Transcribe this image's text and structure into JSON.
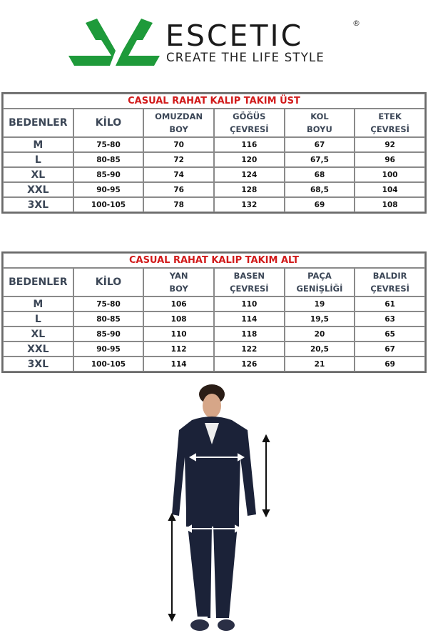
{
  "brand": {
    "name": "ESCETIC",
    "registered": "®",
    "slogan": "CREATE THE LIFE STYLE",
    "colors": {
      "logo_green": "#1e9a3a",
      "text": "#1a1a1a"
    }
  },
  "tables": [
    {
      "title": "CASUAL RAHAT KALIP TAKIM ÜST",
      "headers": [
        [
          "BEDENLER"
        ],
        [
          "KİLO"
        ],
        [
          "OMUZDAN",
          "BOY"
        ],
        [
          "GÖĞÜS",
          "ÇEVRESİ"
        ],
        [
          "KOL",
          "BOYU"
        ],
        [
          "ETEK",
          "ÇEVRESİ"
        ]
      ],
      "rows": [
        [
          "M",
          "75-80",
          "70",
          "116",
          "67",
          "92"
        ],
        [
          "L",
          "80-85",
          "72",
          "120",
          "67,5",
          "96"
        ],
        [
          "XL",
          "85-90",
          "74",
          "124",
          "68",
          "100"
        ],
        [
          "XXL",
          "90-95",
          "76",
          "128",
          "68,5",
          "104"
        ],
        [
          "3XL",
          "100-105",
          "78",
          "132",
          "69",
          "108"
        ]
      ]
    },
    {
      "title": "CASUAL RAHAT KALIP TAKIM ALT",
      "headers": [
        [
          "BEDENLER"
        ],
        [
          "KİLO"
        ],
        [
          "YAN",
          "BOY"
        ],
        [
          "BASEN",
          "ÇEVRESİ"
        ],
        [
          "PAÇA",
          "GENİŞLİĞİ"
        ],
        [
          "BALDIR",
          "ÇEVRESİ"
        ]
      ],
      "rows": [
        [
          "M",
          "75-80",
          "106",
          "110",
          "19",
          "61"
        ],
        [
          "L",
          "80-85",
          "108",
          "114",
          "19,5",
          "63"
        ],
        [
          "XL",
          "85-90",
          "110",
          "118",
          "20",
          "65"
        ],
        [
          "XXL",
          "90-95",
          "112",
          "122",
          "20,5",
          "67"
        ],
        [
          "3XL",
          "100-105",
          "114",
          "126",
          "21",
          "69"
        ]
      ]
    }
  ],
  "colors": {
    "title_red": "#d11a1a",
    "header_text": "#3c4757",
    "garment_navy": "#1b2238"
  }
}
